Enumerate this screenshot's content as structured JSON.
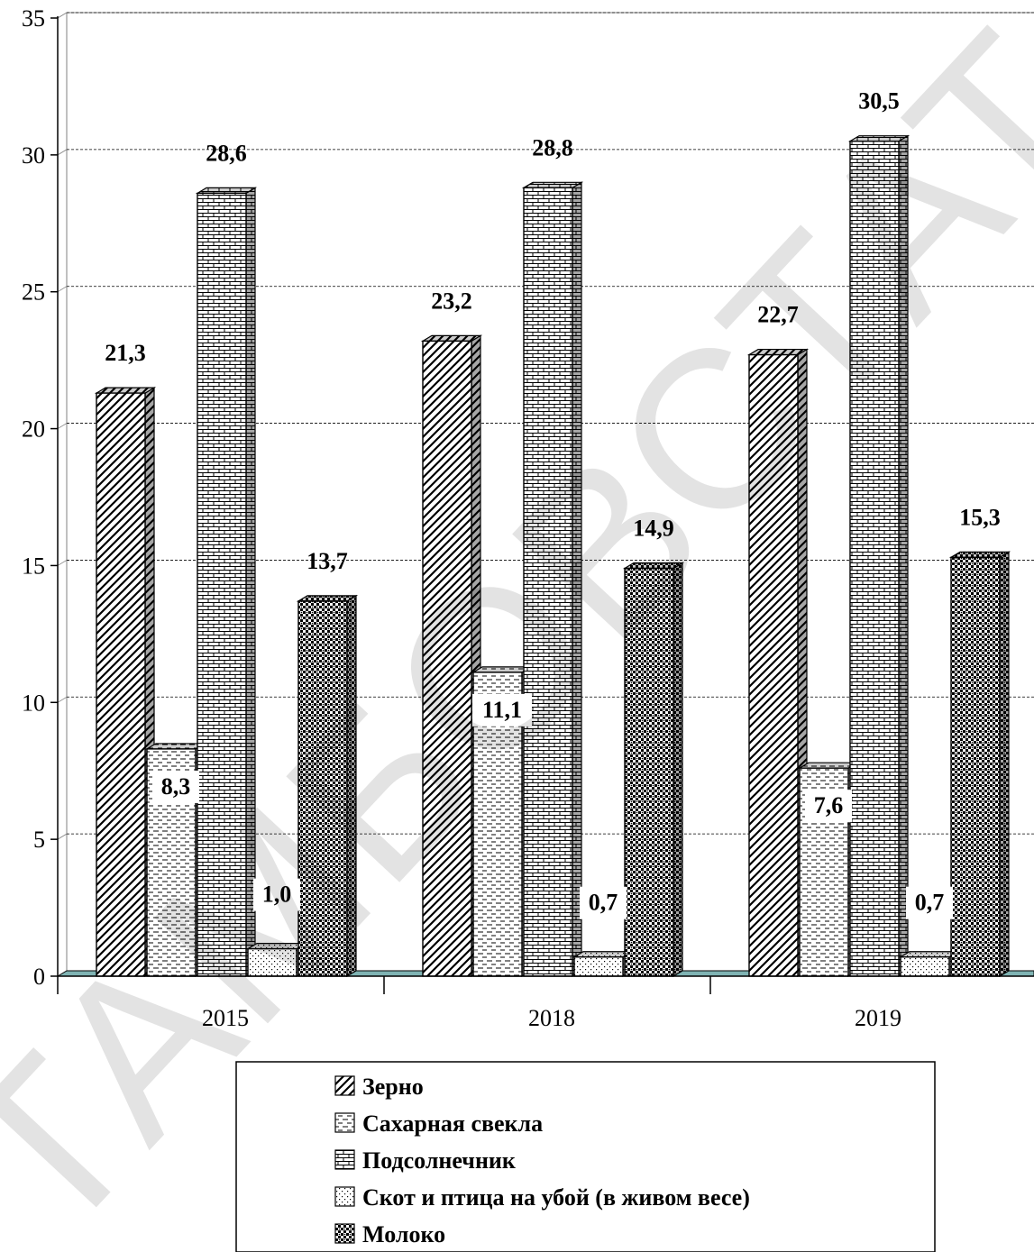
{
  "watermark": "ТАМБОВСТАТ",
  "chart_data": {
    "type": "bar",
    "categories": [
      "2015",
      "2018",
      "2019"
    ],
    "series": [
      {
        "name": "Зерно",
        "values": [
          21.3,
          23.2,
          22.7
        ],
        "labels": [
          "21,3",
          "23,2",
          "22,7"
        ],
        "pattern": "diagonal-hatch"
      },
      {
        "name": "Сахарная свекла",
        "values": [
          8.3,
          11.1,
          7.6
        ],
        "labels": [
          "8,3",
          "11,1",
          "7,6"
        ],
        "pattern": "dashed-lines"
      },
      {
        "name": "Подсолнечник",
        "values": [
          28.6,
          28.8,
          30.5
        ],
        "labels": [
          "28,6",
          "28,8",
          "30,5"
        ],
        "pattern": "brick"
      },
      {
        "name": "Скот и птица на убой (в живом весе)",
        "values": [
          1.0,
          0.7,
          0.7
        ],
        "labels": [
          "1,0",
          "0,7",
          "0,7"
        ],
        "pattern": "dots"
      },
      {
        "name": "Молоко",
        "values": [
          13.7,
          14.9,
          15.3
        ],
        "labels": [
          "13,7",
          "14,9",
          "15,3"
        ],
        "pattern": "checker"
      }
    ],
    "ylim": [
      0,
      35
    ],
    "yticks": [
      "0",
      "5",
      "10",
      "15",
      "20",
      "25",
      "30",
      "35"
    ],
    "grid": true,
    "legend": "bottom",
    "three_d": true,
    "colors": {
      "background": "#ffffff",
      "bar_outline": "#000000",
      "floor": "#7fb3b3",
      "grid": "#000000"
    }
  }
}
